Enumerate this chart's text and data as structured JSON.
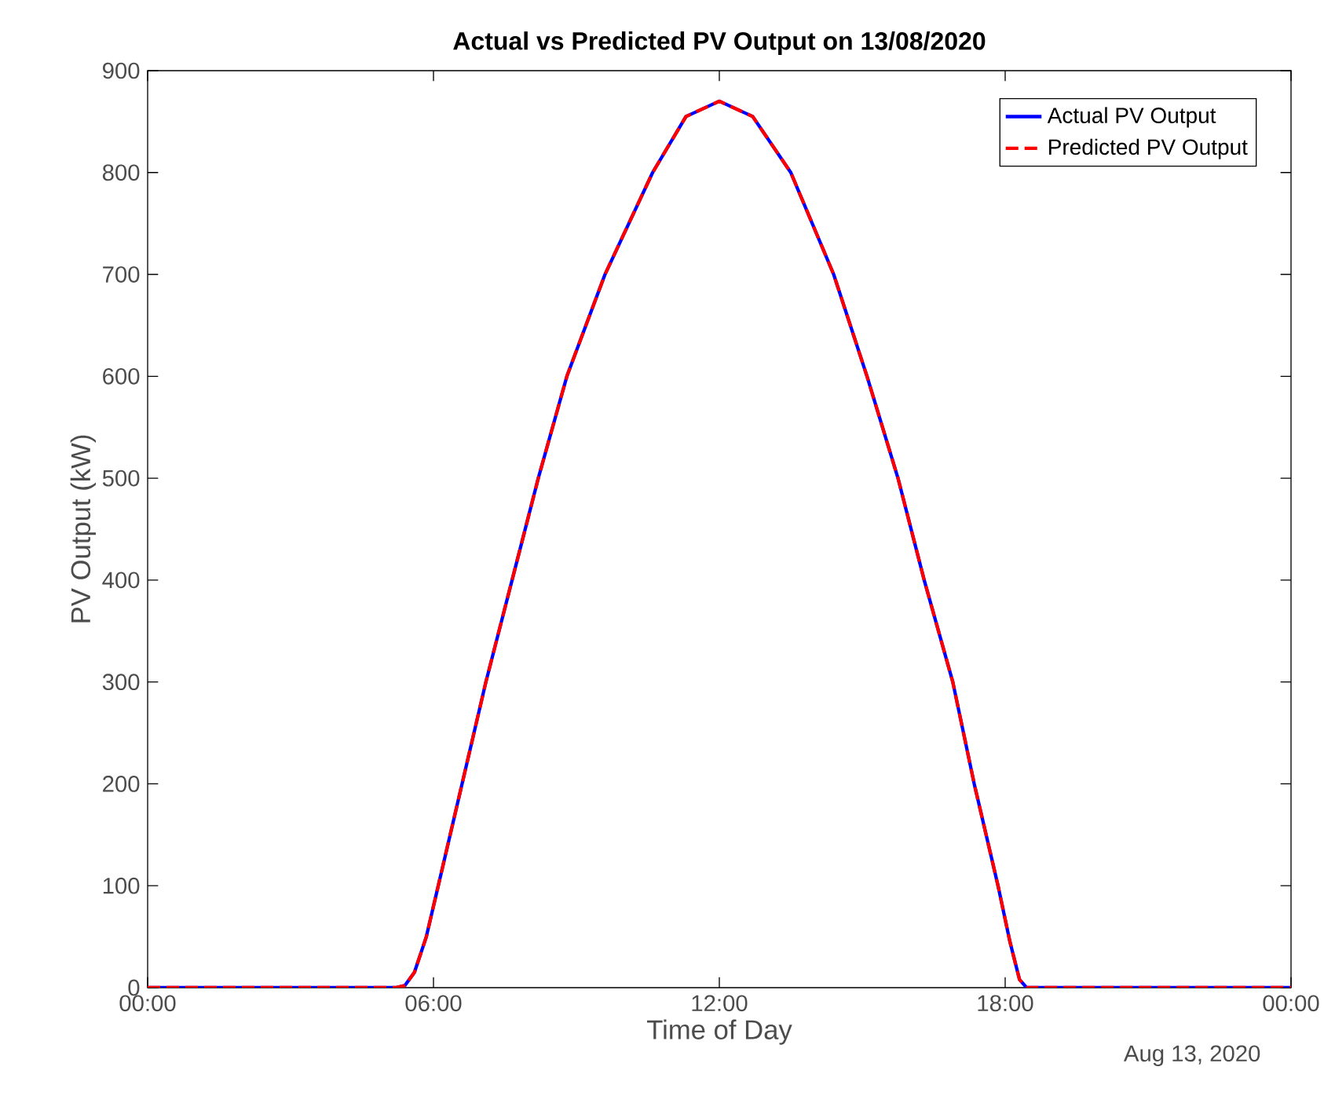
{
  "chart_data": {
    "type": "line",
    "title": "Actual vs Predicted PV Output on 13/08/2020",
    "xlabel": "Time of Day",
    "ylabel": "PV Output (kW)",
    "annotations": [
      "Aug 13, 2020"
    ],
    "xlim": [
      0,
      24
    ],
    "ylim": [
      0,
      900
    ],
    "xticks": [
      {
        "value": 0,
        "label": "00:00"
      },
      {
        "value": 6,
        "label": "06:00"
      },
      {
        "value": 12,
        "label": "12:00"
      },
      {
        "value": 18,
        "label": "18:00"
      },
      {
        "value": 24,
        "label": "00:00"
      }
    ],
    "yticks": [
      0,
      100,
      200,
      300,
      400,
      500,
      600,
      700,
      800,
      900
    ],
    "legend": "top right",
    "series": [
      {
        "name": "Actual PV Output",
        "color": "#0000ff",
        "line_style": "solid",
        "x": [
          0,
          5.2,
          5.4,
          5.6,
          5.85,
          6.1,
          6.6,
          7.1,
          7.65,
          8.2,
          8.8,
          9.6,
          10.6,
          11.3,
          12,
          12.7,
          13.5,
          14.4,
          15.1,
          15.75,
          16.3,
          16.9,
          17.35,
          17.85,
          18.1,
          18.3,
          18.45,
          24
        ],
        "values": [
          0,
          0,
          2,
          15,
          50,
          100,
          200,
          300,
          400,
          500,
          600,
          700,
          800,
          855,
          870,
          855,
          800,
          700,
          600,
          500,
          400,
          300,
          200,
          100,
          45,
          8,
          0,
          0
        ]
      },
      {
        "name": "Predicted PV Output",
        "color": "#ff0000",
        "line_style": "dashed",
        "x": [
          0,
          5.2,
          5.4,
          5.6,
          5.85,
          6.1,
          6.6,
          7.1,
          7.65,
          8.2,
          8.8,
          9.6,
          10.6,
          11.3,
          12,
          12.7,
          13.5,
          14.4,
          15.1,
          15.75,
          16.3,
          16.9,
          17.35,
          17.85,
          18.1,
          18.3,
          18.45,
          24
        ],
        "values": [
          0,
          0,
          2,
          15,
          50,
          100,
          200,
          300,
          400,
          500,
          600,
          700,
          800,
          855,
          870,
          855,
          800,
          700,
          600,
          500,
          400,
          300,
          200,
          100,
          45,
          8,
          0,
          0
        ]
      }
    ]
  }
}
